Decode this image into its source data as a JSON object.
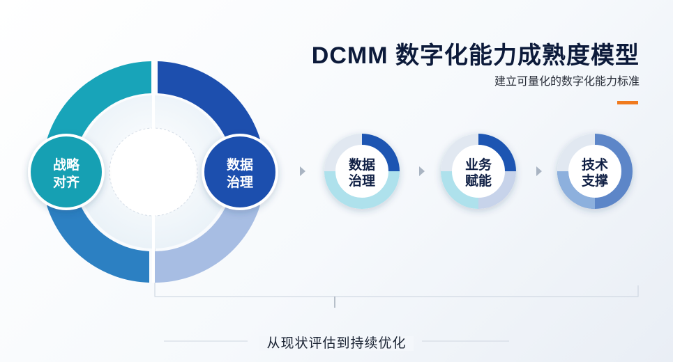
{
  "header": {
    "title": "DCMM 数字化能力成熟度模型",
    "subtitle": "建立可量化的数字化能力标准"
  },
  "main_cycle": {
    "left_node": [
      "战略",
      "对齐"
    ],
    "right_node": [
      "数据",
      "治理"
    ]
  },
  "steps": [
    {
      "lines": [
        "数据",
        "治理"
      ],
      "progress": 0.25
    },
    {
      "lines": [
        "业务",
        "赋能"
      ],
      "progress": 0.25
    },
    {
      "lines": [
        "技术",
        "支撑"
      ],
      "progress": 0.75
    }
  ],
  "footer": {
    "caption": "从现状评估到持续优化"
  },
  "colors": {
    "teal": "#1ba3b8",
    "navy": "#1c4aa6",
    "blue": "#2e78bf",
    "light_blue": "#a6bde2",
    "accent": "#f07a1e"
  }
}
